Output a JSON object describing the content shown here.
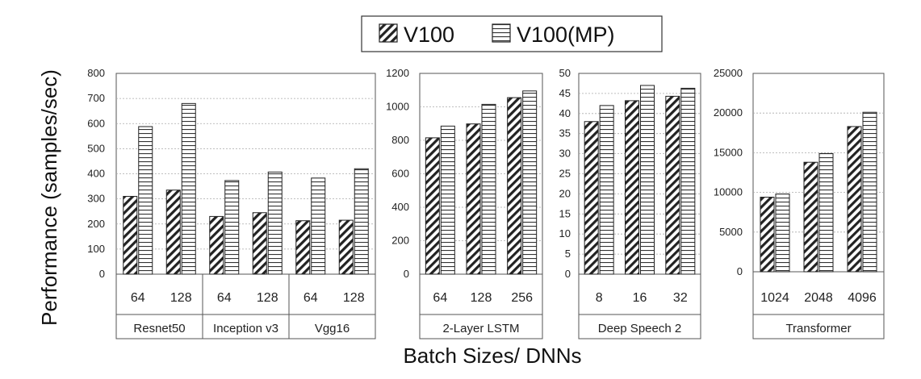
{
  "legend": [
    "V100",
    "V100(MP)"
  ],
  "ylabel": "Performance (samples/sec)",
  "xlabel": "Batch Sizes/ DNNs",
  "chart_data": [
    {
      "type": "bar",
      "ylim": [
        0,
        800
      ],
      "yticks": [
        0,
        100,
        200,
        300,
        400,
        500,
        600,
        700,
        800
      ],
      "grid": true,
      "categories": [
        "64",
        "128",
        "64",
        "128",
        "64",
        "128"
      ],
      "groups": [
        {
          "label": "Resnet50",
          "span": 2
        },
        {
          "label": "Inception v3",
          "span": 2
        },
        {
          "label": "Vgg16",
          "span": 2
        }
      ],
      "series": [
        {
          "name": "V100",
          "values": [
            310,
            335,
            230,
            245,
            213,
            215
          ]
        },
        {
          "name": "V100(MP)",
          "values": [
            588,
            680,
            373,
            407,
            383,
            420
          ]
        }
      ]
    },
    {
      "type": "bar",
      "ylim": [
        0,
        1200
      ],
      "yticks": [
        0,
        200,
        400,
        600,
        800,
        1000,
        1200
      ],
      "grid": true,
      "categories": [
        "64",
        "128",
        "256"
      ],
      "groups": [
        {
          "label": "2-Layer LSTM",
          "span": 3
        }
      ],
      "series": [
        {
          "name": "V100",
          "values": [
            815,
            898,
            1055
          ]
        },
        {
          "name": "V100(MP)",
          "values": [
            885,
            1015,
            1095
          ]
        }
      ]
    },
    {
      "type": "bar",
      "ylim": [
        0,
        50
      ],
      "yticks": [
        0,
        5,
        10,
        15,
        20,
        25,
        30,
        35,
        40,
        45,
        50
      ],
      "grid": true,
      "categories": [
        "8",
        "16",
        "32"
      ],
      "groups": [
        {
          "label": "Deep Speech 2",
          "span": 3
        }
      ],
      "series": [
        {
          "name": "V100",
          "values": [
            38,
            43.2,
            44.3
          ]
        },
        {
          "name": "V100(MP)",
          "values": [
            42,
            47,
            46.3
          ]
        }
      ]
    },
    {
      "type": "bar",
      "ylim": [
        0,
        25000
      ],
      "yticks": [
        0,
        5000,
        10000,
        15000,
        20000,
        25000
      ],
      "grid": true,
      "categories": [
        "1024",
        "2048",
        "4096"
      ],
      "groups": [
        {
          "label": "Transformer",
          "span": 3
        }
      ],
      "series": [
        {
          "name": "V100",
          "values": [
            9400,
            13800,
            18300
          ]
        },
        {
          "name": "V100(MP)",
          "values": [
            9800,
            14900,
            20100
          ]
        }
      ]
    }
  ]
}
